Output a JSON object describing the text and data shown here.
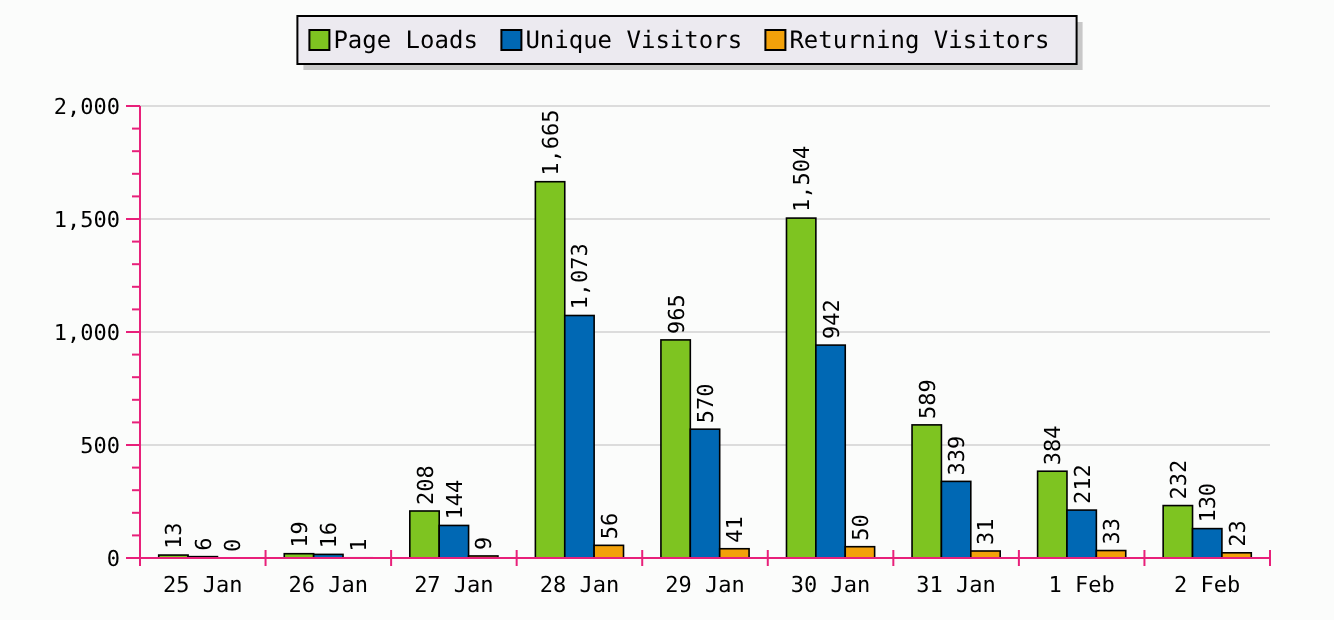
{
  "chart_data": {
    "type": "bar",
    "categories": [
      "25 Jan",
      "26 Jan",
      "27 Jan",
      "28 Jan",
      "29 Jan",
      "30 Jan",
      "31 Jan",
      "1 Feb",
      "2 Feb"
    ],
    "series": [
      {
        "name": "Page Loads",
        "color": "#7ec421",
        "values": [
          13,
          19,
          208,
          1665,
          965,
          1504,
          589,
          384,
          232
        ],
        "value_labels": [
          "13",
          "19",
          "208",
          "1,665",
          "965",
          "1,504",
          "589",
          "384",
          "232"
        ]
      },
      {
        "name": "Unique Visitors",
        "color": "#0068b4",
        "values": [
          6,
          16,
          144,
          1073,
          570,
          942,
          339,
          212,
          130
        ],
        "value_labels": [
          "6",
          "16",
          "144",
          "1,073",
          "570",
          "942",
          "339",
          "212",
          "130"
        ]
      },
      {
        "name": "Returning Visitors",
        "color": "#f2a10a",
        "values": [
          0,
          1,
          9,
          56,
          41,
          50,
          31,
          33,
          23
        ],
        "value_labels": [
          "0",
          "1",
          "9",
          "56",
          "41",
          "50",
          "31",
          "33",
          "23"
        ]
      }
    ],
    "ylim": [
      0,
      2000
    ],
    "yticks": [
      {
        "value": 0,
        "label": "0"
      },
      {
        "value": 500,
        "label": "500"
      },
      {
        "value": 1000,
        "label": "1,000"
      },
      {
        "value": 1500,
        "label": "1,500"
      },
      {
        "value": 2000,
        "label": "2,000"
      }
    ],
    "grid": "y",
    "legend": "top"
  }
}
